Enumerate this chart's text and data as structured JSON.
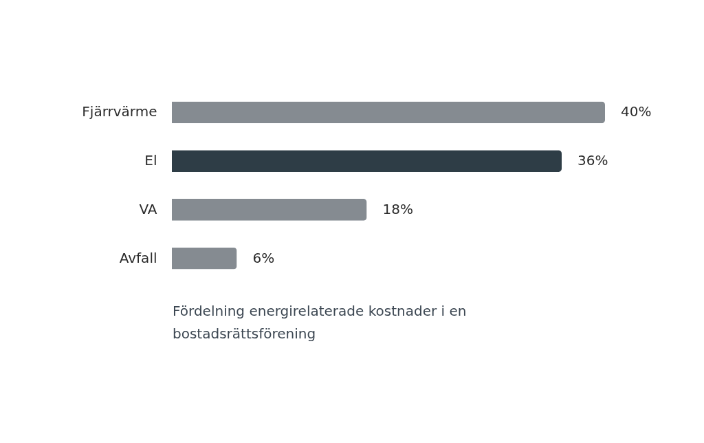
{
  "chart_data": {
    "type": "bar",
    "orientation": "horizontal",
    "categories": [
      "Fjärrvärme",
      "El",
      "VA",
      "Avfall"
    ],
    "values": [
      40,
      36,
      18,
      6
    ],
    "colors": [
      "#858b91",
      "#2e3d46",
      "#858b91",
      "#858b91"
    ],
    "value_labels": [
      "40%",
      "36%",
      "18%",
      "6%"
    ],
    "annotations": [
      "Fördelning energirelaterade kostnader i en bostadsrättsförening"
    ]
  }
}
